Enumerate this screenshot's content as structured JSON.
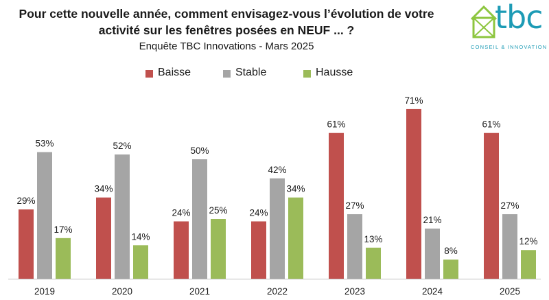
{
  "header": {
    "title_line1": "Pour cette nouvelle année, comment envisagez-vous l’évolution de votre",
    "title_line2": "activité sur les fenêtres posées en NEUF ... ?",
    "subtitle": "Enquête TBC Innovations - Mars 2025"
  },
  "logo": {
    "text": "tbc",
    "tagline": "CONSEIL & INNOVATION",
    "color": "#1d9bb5",
    "accent": "#8dc63f"
  },
  "chart_data": {
    "type": "bar",
    "categories": [
      "2019",
      "2020",
      "2021",
      "2022",
      "2023",
      "2024",
      "2025"
    ],
    "series": [
      {
        "name": "Baisse",
        "color": "#c0504d",
        "values": [
          29,
          34,
          24,
          24,
          61,
          71,
          61
        ],
        "labels": [
          "29%",
          "34%",
          "24%",
          "24%",
          "61%",
          "71%",
          "61%"
        ]
      },
      {
        "name": "Stable",
        "color": "#a5a5a5",
        "values": [
          53,
          52,
          50,
          42,
          27,
          21,
          27
        ],
        "labels": [
          "53%",
          "52%",
          "50%",
          "42%",
          "27%",
          "21%",
          "27%"
        ]
      },
      {
        "name": "Hausse",
        "color": "#9bbb59",
        "values": [
          17,
          14,
          25,
          34,
          13,
          8,
          12
        ],
        "labels": [
          "17%",
          "14%",
          "25%",
          "34%",
          "13%",
          "8%",
          "12%"
        ]
      }
    ],
    "ylim": [
      0,
      100
    ],
    "grid": false,
    "legend_position": "top"
  }
}
